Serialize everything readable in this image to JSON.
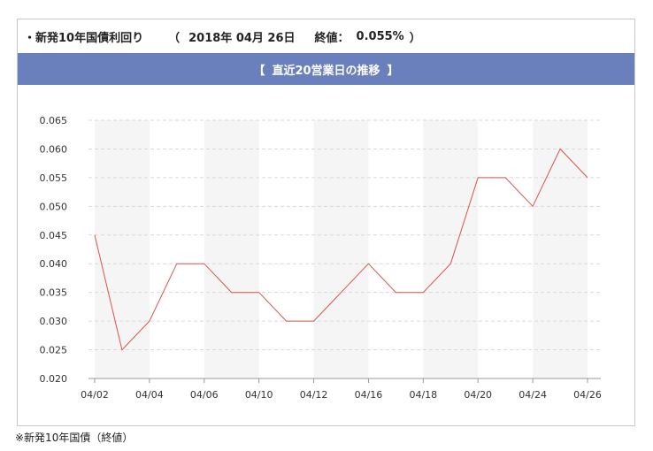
{
  "header": {
    "name": "・新発10年国債利回り",
    "open_paren": "（",
    "date": "2018年 04月 26日",
    "close_label": "終値：",
    "close_value": "0.055%",
    "close_paren": "）"
  },
  "banner": {
    "open_bracket": "【",
    "title": "直近20営業日の推移",
    "close_bracket": "】"
  },
  "footnote": "※新発10年国債（終値）",
  "colors": {
    "banner": "#6a80bd",
    "line": "#d9534f",
    "band": "#f5f5f5"
  },
  "chart_data": {
    "type": "line",
    "title": "直近20営業日の推移",
    "xlabel": "",
    "ylabel": "",
    "ylim": [
      0.02,
      0.065
    ],
    "y_ticks": [
      "0.020",
      "0.025",
      "0.030",
      "0.035",
      "0.040",
      "0.045",
      "0.050",
      "0.055",
      "0.060",
      "0.065"
    ],
    "x_tick_labels": [
      "04/02",
      "04/04",
      "04/06",
      "04/10",
      "04/12",
      "04/16",
      "04/18",
      "04/20",
      "04/24",
      "04/26"
    ],
    "x": [
      "04/02",
      "04/03",
      "04/04",
      "04/05",
      "04/06",
      "04/09",
      "04/10",
      "04/11",
      "04/12",
      "04/13",
      "04/16",
      "04/17",
      "04/18",
      "04/19",
      "04/20",
      "04/23",
      "04/24",
      "04/25",
      "04/26"
    ],
    "values": [
      0.045,
      0.025,
      0.03,
      0.04,
      0.04,
      0.035,
      0.035,
      0.03,
      0.03,
      0.035,
      0.04,
      0.035,
      0.035,
      0.04,
      0.055,
      0.055,
      0.05,
      0.06,
      0.055
    ],
    "grid": true
  }
}
